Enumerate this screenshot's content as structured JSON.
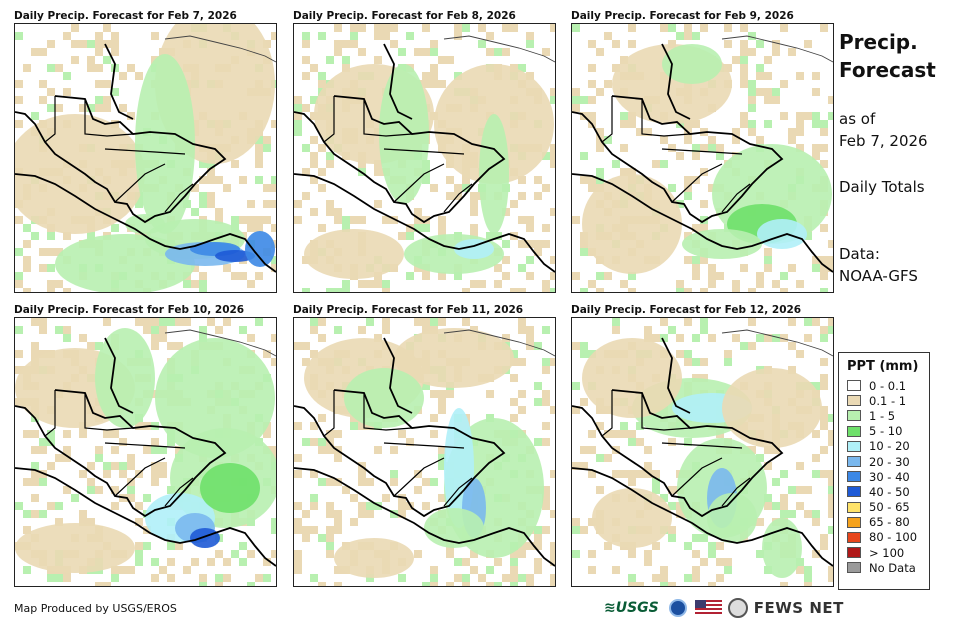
{
  "panels": [
    {
      "title": "Daily Precip. Forecast for Feb 7, 2026",
      "intensity": "high-pacific-coast"
    },
    {
      "title": "Daily Precip. Forecast for Feb 8, 2026",
      "intensity": "light"
    },
    {
      "title": "Daily Precip. Forecast for Feb 9, 2026",
      "intensity": "moderate-caribbean"
    },
    {
      "title": "Daily Precip. Forecast for Feb 10, 2026",
      "intensity": "high-pacific-coast"
    },
    {
      "title": "Daily Precip. Forecast for Feb 11, 2026",
      "intensity": "moderate-central"
    },
    {
      "title": "Daily Precip. Forecast for Feb 12, 2026",
      "intensity": "moderate-caribbean"
    }
  ],
  "side": {
    "title_line1": "Precip.",
    "title_line2": "Forecast",
    "as_of": "as of",
    "date": "Feb 7, 2026",
    "totals": "Daily Totals",
    "data_label": "Data:",
    "data_source": "NOAA-GFS"
  },
  "legend": {
    "title": "PPT (mm)",
    "items": [
      {
        "label": "0 - 0.1",
        "color": "#ffffff"
      },
      {
        "label": "0.1 - 1",
        "color": "#ead9b4"
      },
      {
        "label": "1 - 5",
        "color": "#b8f0b0"
      },
      {
        "label": "5 - 10",
        "color": "#6ee06a"
      },
      {
        "label": "10 - 20",
        "color": "#b0f0f8"
      },
      {
        "label": "20 - 30",
        "color": "#7ab8ee"
      },
      {
        "label": "30 - 40",
        "color": "#3c88e6"
      },
      {
        "label": "40 - 50",
        "color": "#1e5ad6"
      },
      {
        "label": "50 - 65",
        "color": "#ffe36a"
      },
      {
        "label": "65 - 80",
        "color": "#f5a21c"
      },
      {
        "label": "80 - 100",
        "color": "#e8461c"
      },
      {
        "label": "> 100",
        "color": "#b01818"
      },
      {
        "label": "No Data",
        "color": "#9a9a9a"
      }
    ]
  },
  "footer": {
    "credit": "Map Produced by USGS/EROS",
    "usgs": "≋USGS",
    "fews": "FEWS NET"
  }
}
